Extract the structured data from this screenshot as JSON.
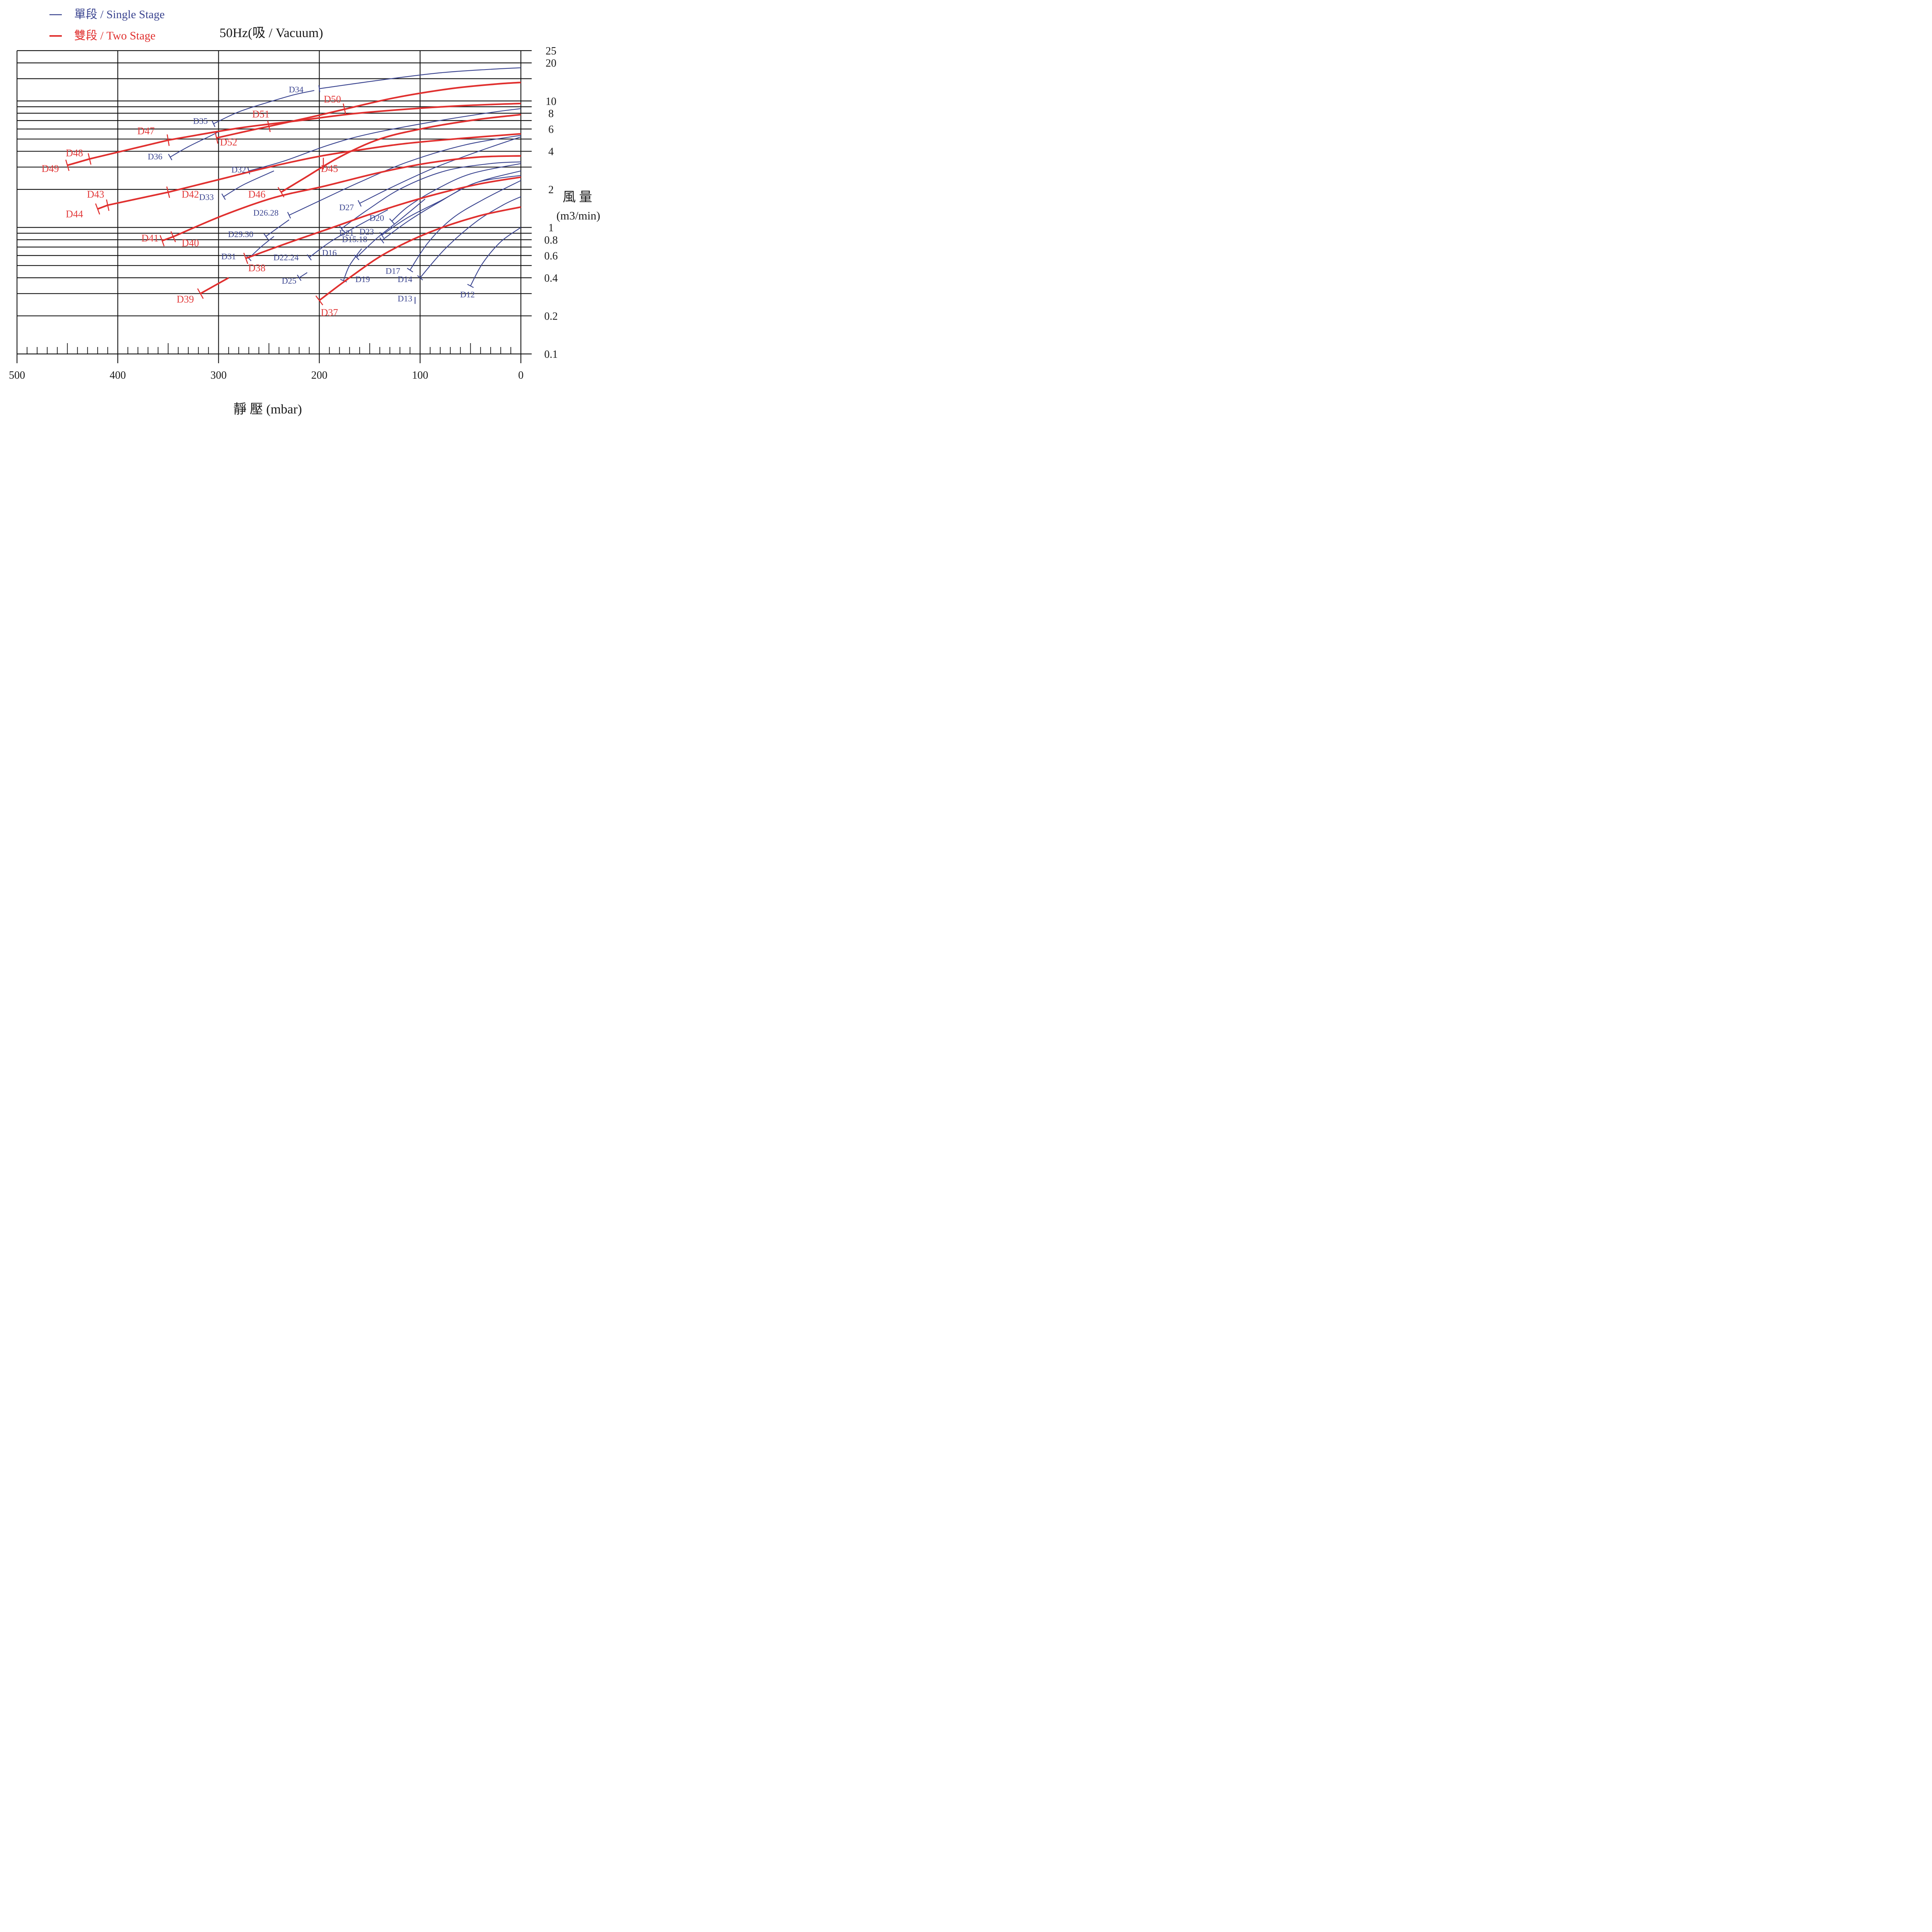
{
  "legend": {
    "single_label": "單段 / Single Stage",
    "two_label": "雙段 / Two Stage",
    "single_color": "#3b4590",
    "two_color": "#e0302f"
  },
  "title": "50Hz(吸 / Vacuum)",
  "xlabel": "靜 壓 (mbar)",
  "ylabel_top": "風 量",
  "ylabel_bottom": "(m3/min)",
  "chart_data": {
    "type": "line",
    "xscale": "linear",
    "yscale": "log",
    "xlim": [
      500,
      0
    ],
    "ylim": [
      0.1,
      25
    ],
    "x_ticks": [
      500,
      400,
      300,
      200,
      100,
      0
    ],
    "x_tick_labels": [
      "500",
      "400",
      "300",
      "200",
      "100",
      "0"
    ],
    "y_ticks": [
      0.1,
      0.2,
      0.4,
      0.6,
      0.8,
      1,
      2,
      4,
      6,
      8,
      10,
      20,
      25
    ],
    "y_tick_labels": [
      "0.1",
      "0.2",
      "0.4",
      "0.6",
      "0.8",
      "1",
      "2",
      "4",
      "6",
      "8",
      "10",
      "20",
      "25"
    ],
    "grid": true,
    "legend_position": "top-left",
    "series": [
      {
        "name": "D12",
        "stage": "single",
        "points": [
          [
            50,
            0.345
          ],
          [
            38,
            0.52
          ],
          [
            20,
            0.77
          ],
          [
            0,
            1.0
          ]
        ]
      },
      {
        "name": "D13",
        "stage": "single",
        "points": [
          [
            105,
            0.265
          ]
        ]
      },
      {
        "name": "D14",
        "stage": "single",
        "points": [
          [
            100,
            0.4
          ],
          [
            75,
            0.68
          ],
          [
            45,
            1.1
          ],
          [
            18,
            1.5
          ],
          [
            0,
            1.75
          ]
        ]
      },
      {
        "name": "D17",
        "stage": "single",
        "points": [
          [
            110,
            0.46
          ],
          [
            92,
            0.76
          ],
          [
            68,
            1.18
          ],
          [
            38,
            1.65
          ],
          [
            0,
            2.35
          ]
        ]
      },
      {
        "name": "D15.18",
        "stage": "single",
        "points": [
          [
            138,
            0.79
          ],
          [
            112,
            1.12
          ],
          [
            82,
            1.57
          ],
          [
            45,
            2.25
          ],
          [
            0,
            2.58
          ]
        ]
      },
      {
        "name": "D23",
        "stage": "single",
        "points": [
          [
            138,
            0.87
          ],
          [
            112,
            1.2
          ],
          [
            80,
            1.62
          ],
          [
            45,
            2.25
          ],
          [
            0,
            2.8
          ]
        ]
      },
      {
        "name": "D20",
        "stage": "single",
        "points": [
          [
            128,
            1.12
          ],
          [
            112,
            1.46
          ],
          [
            85,
            1.98
          ],
          [
            50,
            2.65
          ],
          [
            0,
            3.2
          ]
        ]
      },
      {
        "name": "D16",
        "stage": "single",
        "points": [
          [
            163,
            0.58
          ],
          [
            143,
            0.82
          ],
          [
            120,
            1.15
          ],
          [
            95,
            1.68
          ]
        ]
      },
      {
        "name": "D19",
        "stage": "single",
        "points": [
          [
            176,
            0.38
          ],
          [
            170,
            0.5
          ],
          [
            158,
            0.68
          ]
        ]
      },
      {
        "name": "D21",
        "stage": "single",
        "points": [
          [
            178,
            0.98
          ],
          [
            152,
            1.38
          ],
          [
            118,
            2.05
          ],
          [
            75,
            2.8
          ],
          [
            30,
            3.2
          ],
          [
            0,
            3.3
          ]
        ]
      },
      {
        "name": "D22.24",
        "stage": "single",
        "points": [
          [
            210,
            0.58
          ],
          [
            188,
            0.78
          ],
          [
            160,
            1.05
          ],
          [
            132,
            1.38
          ]
        ]
      },
      {
        "name": "D25",
        "stage": "single",
        "points": [
          [
            220,
            0.4
          ],
          [
            212,
            0.44
          ]
        ]
      },
      {
        "name": "D27",
        "stage": "single",
        "points": [
          [
            160,
            1.55
          ],
          [
            128,
            2.08
          ],
          [
            85,
            2.98
          ],
          [
            40,
            4.05
          ],
          [
            0,
            5.2
          ]
        ]
      },
      {
        "name": "D26.28",
        "stage": "single",
        "points": [
          [
            230,
            1.25
          ],
          [
            200,
            1.62
          ],
          [
            160,
            2.28
          ],
          [
            112,
            3.3
          ],
          [
            55,
            4.5
          ],
          [
            0,
            5.35
          ]
        ]
      },
      {
        "name": "D29.30",
        "stage": "single",
        "points": [
          [
            253,
            0.85
          ],
          [
            230,
            1.15
          ]
        ]
      },
      {
        "name": "D31",
        "stage": "single",
        "points": [
          [
            270,
            0.57
          ],
          [
            258,
            0.7
          ],
          [
            245,
            0.85
          ]
        ]
      },
      {
        "name": "D32",
        "stage": "single",
        "points": [
          [
            270,
            2.8
          ],
          [
            235,
            3.35
          ],
          [
            190,
            4.5
          ],
          [
            150,
            5.5
          ],
          [
            85,
            6.9
          ],
          [
            30,
            8.1
          ],
          [
            0,
            8.7
          ]
        ]
      },
      {
        "name": "D33",
        "stage": "single",
        "points": [
          [
            295,
            1.75
          ],
          [
            275,
            2.18
          ],
          [
            245,
            2.8
          ]
        ]
      },
      {
        "name": "D34",
        "stage": "single",
        "points": [
          [
            200,
            12.5
          ],
          [
            140,
            14.6
          ],
          [
            80,
            16.7
          ],
          [
            30,
            17.8
          ],
          [
            0,
            18.3
          ]
        ]
      },
      {
        "name": "D35",
        "stage": "single",
        "points": [
          [
            305,
            6.6
          ],
          [
            280,
            8.2
          ],
          [
            250,
            9.8
          ],
          [
            225,
            11.2
          ],
          [
            205,
            12.1
          ]
        ]
      },
      {
        "name": "D36",
        "stage": "single",
        "points": [
          [
            348,
            3.6
          ],
          [
            330,
            4.35
          ],
          [
            310,
            5.2
          ],
          [
            300,
            5.7
          ]
        ]
      },
      {
        "name": "D37",
        "stage": "two",
        "points": [
          [
            200,
            0.265
          ],
          [
            172,
            0.39
          ],
          [
            135,
            0.62
          ],
          [
            90,
            0.92
          ],
          [
            42,
            1.23
          ],
          [
            0,
            1.45
          ]
        ]
      },
      {
        "name": "D38",
        "stage": "two",
        "points": [
          [
            273,
            0.57
          ],
          [
            232,
            0.75
          ],
          [
            190,
            0.98
          ],
          [
            140,
            1.35
          ],
          [
            90,
            1.78
          ],
          [
            42,
            2.2
          ],
          [
            0,
            2.5
          ]
        ]
      },
      {
        "name": "D39",
        "stage": "two",
        "points": [
          [
            318,
            0.3
          ],
          [
            290,
            0.4
          ]
        ]
      },
      {
        "name": "D40",
        "stage": "two",
        "points": [
          [
            345,
            0.845
          ],
          [
            295,
            1.25
          ],
          [
            245,
            1.72
          ],
          [
            195,
            2.12
          ],
          [
            140,
            2.72
          ],
          [
            90,
            3.25
          ],
          [
            42,
            3.6
          ],
          [
            0,
            3.68
          ]
        ]
      },
      {
        "name": "D41",
        "stage": "two",
        "points": [
          [
            356,
            0.785
          ],
          [
            345,
            0.845
          ]
        ]
      },
      {
        "name": "D42",
        "stage": "two",
        "points": [
          [
            350,
            1.9
          ],
          [
            290,
            2.5
          ],
          [
            250,
            3.0
          ],
          [
            200,
            3.65
          ],
          [
            160,
            4.1
          ],
          [
            115,
            4.6
          ],
          [
            60,
            5.05
          ],
          [
            0,
            5.5
          ]
        ]
      },
      {
        "name": "D43",
        "stage": "two",
        "points": [
          [
            410,
            1.5
          ],
          [
            350,
            1.9
          ]
        ]
      },
      {
        "name": "D44",
        "stage": "two",
        "points": [
          [
            420,
            1.4
          ],
          [
            410,
            1.5
          ]
        ]
      },
      {
        "name": "D45",
        "stage": "two",
        "points": [
          [
            196,
            3.2
          ]
        ]
      },
      {
        "name": "D46",
        "stage": "two",
        "points": [
          [
            238,
            1.9
          ],
          [
            215,
            2.45
          ],
          [
            180,
            3.6
          ],
          [
            140,
            5.0
          ],
          [
            95,
            6.1
          ],
          [
            45,
            7.1
          ],
          [
            0,
            7.8
          ]
        ]
      },
      {
        "name": "D47",
        "stage": "two",
        "points": [
          [
            350,
            4.9
          ],
          [
            280,
            6.1
          ],
          [
            220,
            7.0
          ],
          [
            165,
            7.95
          ],
          [
            110,
            8.65
          ],
          [
            55,
            9.2
          ],
          [
            0,
            9.55
          ]
        ]
      },
      {
        "name": "D48",
        "stage": "two",
        "points": [
          [
            428,
            3.48
          ],
          [
            350,
            4.9
          ]
        ]
      },
      {
        "name": "D49",
        "stage": "two",
        "points": [
          [
            450,
            3.1
          ],
          [
            428,
            3.48
          ]
        ]
      },
      {
        "name": "D50",
        "stage": "two",
        "points": [
          [
            175,
            8.6
          ],
          [
            125,
            10.6
          ],
          [
            70,
            12.5
          ],
          [
            25,
            13.6
          ],
          [
            0,
            14.0
          ]
        ]
      },
      {
        "name": "D51",
        "stage": "two",
        "points": [
          [
            250,
            6.3
          ],
          [
            210,
            7.4
          ],
          [
            175,
            8.6
          ]
        ]
      },
      {
        "name": "D52",
        "stage": "two",
        "points": [
          [
            302,
            5.1
          ],
          [
            275,
            5.7
          ],
          [
            250,
            6.3
          ]
        ]
      }
    ],
    "labels": [
      {
        "text": "D12",
        "stage": "single",
        "pos": [
          53,
          0.28
        ]
      },
      {
        "text": "D13",
        "stage": "single",
        "pos": [
          115,
          0.26
        ]
      },
      {
        "text": "D14",
        "stage": "single",
        "pos": [
          115,
          0.37
        ]
      },
      {
        "text": "D17",
        "stage": "single",
        "pos": [
          127,
          0.43
        ]
      },
      {
        "text": "D15.18",
        "stage": "single",
        "pos": [
          165,
          0.765
        ]
      },
      {
        "text": "D23",
        "stage": "single",
        "pos": [
          153,
          0.88
        ]
      },
      {
        "text": "D20",
        "stage": "single",
        "pos": [
          143,
          1.13
        ]
      },
      {
        "text": "D16",
        "stage": "single",
        "pos": [
          190,
          0.6
        ]
      },
      {
        "text": "D19",
        "stage": "single",
        "pos": [
          157,
          0.37
        ]
      },
      {
        "text": "D21",
        "stage": "single",
        "pos": [
          173,
          0.86
        ]
      },
      {
        "text": "D22.24",
        "stage": "single",
        "pos": [
          233,
          0.55
        ]
      },
      {
        "text": "D25",
        "stage": "single",
        "pos": [
          230,
          0.36
        ]
      },
      {
        "text": "D27",
        "stage": "single",
        "pos": [
          173,
          1.37
        ]
      },
      {
        "text": "D26.28",
        "stage": "single",
        "pos": [
          253,
          1.24
        ]
      },
      {
        "text": "D29.30",
        "stage": "single",
        "pos": [
          278,
          0.84
        ]
      },
      {
        "text": "D31",
        "stage": "single",
        "pos": [
          290,
          0.56
        ]
      },
      {
        "text": "D32",
        "stage": "single",
        "pos": [
          280,
          2.72
        ]
      },
      {
        "text": "D33",
        "stage": "single",
        "pos": [
          312,
          1.65
        ]
      },
      {
        "text": "D34",
        "stage": "single",
        "pos": [
          223,
          11.7
        ]
      },
      {
        "text": "D35",
        "stage": "single",
        "pos": [
          318,
          6.6
        ]
      },
      {
        "text": "D36",
        "stage": "single",
        "pos": [
          363,
          3.45
        ]
      },
      {
        "text": "D37",
        "stage": "two",
        "pos": [
          190,
          0.2
        ]
      },
      {
        "text": "D38",
        "stage": "two",
        "pos": [
          262,
          0.45
        ]
      },
      {
        "text": "D39",
        "stage": "two",
        "pos": [
          333,
          0.255
        ]
      },
      {
        "text": "D40",
        "stage": "two",
        "pos": [
          328,
          0.71
        ]
      },
      {
        "text": "D41",
        "stage": "two",
        "pos": [
          368,
          0.775
        ]
      },
      {
        "text": "D42",
        "stage": "two",
        "pos": [
          328,
          1.72
        ]
      },
      {
        "text": "D43",
        "stage": "two",
        "pos": [
          422,
          1.72
        ]
      },
      {
        "text": "D44",
        "stage": "two",
        "pos": [
          443,
          1.2
        ]
      },
      {
        "text": "D45",
        "stage": "two",
        "pos": [
          190,
          2.75
        ]
      },
      {
        "text": "D46",
        "stage": "two",
        "pos": [
          262,
          1.72
        ]
      },
      {
        "text": "D47",
        "stage": "two",
        "pos": [
          372,
          5.45
        ]
      },
      {
        "text": "D48",
        "stage": "two",
        "pos": [
          443,
          3.65
        ]
      },
      {
        "text": "D49",
        "stage": "two",
        "pos": [
          467,
          2.75
        ]
      },
      {
        "text": "D50",
        "stage": "two",
        "pos": [
          187,
          9.7
        ]
      },
      {
        "text": "D51",
        "stage": "two",
        "pos": [
          258,
          7.4
        ]
      },
      {
        "text": "D52",
        "stage": "two",
        "pos": [
          290,
          4.45
        ]
      }
    ]
  }
}
